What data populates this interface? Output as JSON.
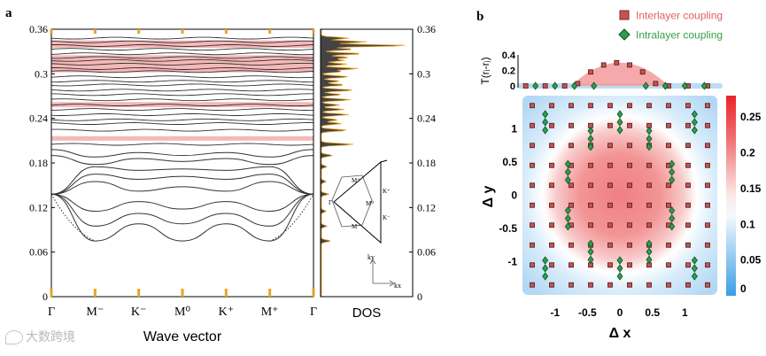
{
  "panel_a_label": "a",
  "panel_b_label": "b",
  "watermark": "大数跨境",
  "chart_data": [
    {
      "id": "band-structure",
      "type": "line",
      "title": "",
      "xlabel": "Wave vector",
      "ylabel": "",
      "ylim": [
        0,
        0.36
      ],
      "ytick_labels": [
        "0",
        "0.06",
        "0.12",
        "0.18",
        "0.24",
        "0.3",
        "0.36"
      ],
      "yticks": [
        0,
        0.06,
        0.12,
        0.18,
        0.24,
        0.3,
        0.36
      ],
      "k_points": [
        "Γ",
        "M⁻",
        "K⁻",
        "M⁰",
        "K⁺",
        "M⁺",
        "Γ"
      ],
      "shaded_bands": [
        [
          0.21,
          0.216
        ],
        [
          0.255,
          0.262
        ],
        [
          0.302,
          0.325
        ],
        [
          0.335,
          0.345
        ]
      ],
      "shade_color": "#f5b8b8",
      "band_color": "#333333",
      "tick_marker_color": "#e8a427",
      "flat_bands": [
        0.205,
        0.224,
        0.233,
        0.238,
        0.245,
        0.252,
        0.258,
        0.265,
        0.272,
        0.278,
        0.285,
        0.29,
        0.296,
        0.303,
        0.307,
        0.313,
        0.318,
        0.322,
        0.327,
        0.333,
        0.338,
        0.343,
        0.348
      ],
      "dispersive_bands": [
        [
          0.138,
          0.115,
          0.128,
          0.118,
          0.128,
          0.115,
          0.138
        ],
        [
          0.138,
          0.095,
          0.112,
          0.098,
          0.112,
          0.095,
          0.138
        ],
        [
          0.138,
          0.075,
          0.098,
          0.075,
          0.098,
          0.075,
          0.138
        ],
        [
          0.138,
          0.155,
          0.142,
          0.148,
          0.142,
          0.155,
          0.138
        ],
        [
          0.138,
          0.165,
          0.158,
          0.162,
          0.158,
          0.165,
          0.138
        ],
        [
          0.138,
          0.175,
          0.17,
          0.172,
          0.17,
          0.175,
          0.138
        ],
        [
          0.19,
          0.178,
          0.186,
          0.182,
          0.186,
          0.178,
          0.19
        ],
        [
          0.198,
          0.188,
          0.194,
          0.19,
          0.194,
          0.188,
          0.198
        ]
      ],
      "dotted_bands": [
        [
          0.138,
          0.0,
          0.075
        ],
        [
          0.075,
          0.0,
          0.138
        ]
      ]
    },
    {
      "id": "dos",
      "type": "area",
      "xlabel": "DOS",
      "ylim": [
        0,
        0.36
      ],
      "ytick_labels": [
        "0",
        "0.06",
        "0.12",
        "0.18",
        "0.24",
        "0.3",
        "0.36"
      ],
      "fill_color": "#444444",
      "edge_color": "#e8a427",
      "peaks": [
        {
          "e": 0.075,
          "w": 0.1
        },
        {
          "e": 0.095,
          "w": 0.06
        },
        {
          "e": 0.115,
          "w": 0.05
        },
        {
          "e": 0.138,
          "w": 0.08
        },
        {
          "e": 0.155,
          "w": 0.05
        },
        {
          "e": 0.175,
          "w": 0.06
        },
        {
          "e": 0.19,
          "w": 0.12
        },
        {
          "e": 0.205,
          "w": 0.35
        },
        {
          "e": 0.224,
          "w": 0.28
        },
        {
          "e": 0.233,
          "w": 0.22
        },
        {
          "e": 0.238,
          "w": 0.18
        },
        {
          "e": 0.245,
          "w": 0.3
        },
        {
          "e": 0.252,
          "w": 0.25
        },
        {
          "e": 0.258,
          "w": 0.2
        },
        {
          "e": 0.265,
          "w": 0.32
        },
        {
          "e": 0.272,
          "w": 0.22
        },
        {
          "e": 0.278,
          "w": 0.35
        },
        {
          "e": 0.285,
          "w": 0.25
        },
        {
          "e": 0.29,
          "w": 0.2
        },
        {
          "e": 0.296,
          "w": 0.3
        },
        {
          "e": 0.303,
          "w": 0.22
        },
        {
          "e": 0.307,
          "w": 0.4
        },
        {
          "e": 0.313,
          "w": 0.28
        },
        {
          "e": 0.318,
          "w": 0.25
        },
        {
          "e": 0.322,
          "w": 0.3
        },
        {
          "e": 0.327,
          "w": 0.45
        },
        {
          "e": 0.333,
          "w": 0.35
        },
        {
          "e": 0.338,
          "w": 0.95
        },
        {
          "e": 0.343,
          "w": 0.5
        },
        {
          "e": 0.348,
          "w": 0.3
        }
      ],
      "inset": {
        "labels": [
          "Γ",
          "M⁰",
          "M⁺",
          "M⁻",
          "K⁺",
          "K⁻"
        ],
        "axis_labels": [
          "ky",
          "kx"
        ]
      }
    },
    {
      "id": "coupling-profile",
      "type": "scatter",
      "ylabel": "T(rᵢ-rⱼ)",
      "ylim": [
        0,
        0.4
      ],
      "ytick_labels": [
        "0",
        "0.2",
        "0.4"
      ],
      "legend": [
        {
          "label": "Interlayer coupling",
          "color": "#c8524f",
          "marker": "square",
          "text_color": "#e0625c"
        },
        {
          "label": "Intralayer coupling",
          "color": "#2e9e4e",
          "marker": "diamond",
          "text_color": "#35a046"
        }
      ],
      "interlayer_x": [
        -1.45,
        -1.15,
        -0.85,
        -0.65,
        -0.45,
        -0.25,
        -0.05,
        0.15,
        0.35,
        0.55,
        0.75,
        1.05,
        1.35
      ],
      "interlayer_y": [
        0.0,
        0.0,
        0.0,
        0.03,
        0.18,
        0.27,
        0.3,
        0.27,
        0.18,
        0.03,
        0.0,
        0.0,
        0.0
      ],
      "intralayer_x": [
        -1.3,
        -1.0,
        -0.7,
        -0.4,
        0.4,
        0.7,
        1.0,
        1.3
      ],
      "intralayer_y": [
        0.0,
        0.0,
        0.0,
        0.0,
        0.0,
        0.0,
        0.0,
        0.0
      ]
    },
    {
      "id": "coupling-map",
      "type": "heatmap",
      "xlabel": "Δ x",
      "ylabel": "Δ y",
      "xlim": [
        -1.5,
        1.5
      ],
      "ylim": [
        -1.5,
        1.5
      ],
      "xticks": [
        -1,
        -0.5,
        0,
        0.5,
        1
      ],
      "xtick_labels": [
        "-1",
        "-0.5",
        "0",
        "0.5",
        "1"
      ],
      "yticks": [
        1,
        0.5,
        0,
        -0.5,
        -1
      ],
      "ytick_labels": [
        "1",
        "0.5",
        "0",
        "-0.5",
        "-1"
      ],
      "colorbar": {
        "min": 0,
        "max": 0.28,
        "ticks": [
          0.25,
          0.2,
          0.15,
          0.1,
          0.05,
          0
        ],
        "tick_labels": [
          "0.25",
          "0.2",
          "0.15",
          "0.1",
          "0.05",
          "0"
        ]
      },
      "grid_step": 0.3,
      "grid_start": -1.35,
      "grid_count": 10,
      "interlayer_radius": 0.48,
      "intralayer_groups": [
        {
          "x": -0.45,
          "y": 0.85
        },
        {
          "x": 0.0,
          "y": 1.1
        },
        {
          "x": 0.45,
          "y": 0.85
        },
        {
          "x": -0.8,
          "y": 0.35
        },
        {
          "x": 0.8,
          "y": 0.35
        },
        {
          "x": -0.8,
          "y": -0.35
        },
        {
          "x": 0.8,
          "y": -0.35
        },
        {
          "x": -0.45,
          "y": -0.85
        },
        {
          "x": 0.0,
          "y": -1.1
        },
        {
          "x": 0.45,
          "y": -0.85
        },
        {
          "x": -1.15,
          "y": 1.1
        },
        {
          "x": 1.15,
          "y": 1.1
        },
        {
          "x": -1.15,
          "y": -1.1
        },
        {
          "x": 1.15,
          "y": -1.1
        }
      ]
    }
  ]
}
